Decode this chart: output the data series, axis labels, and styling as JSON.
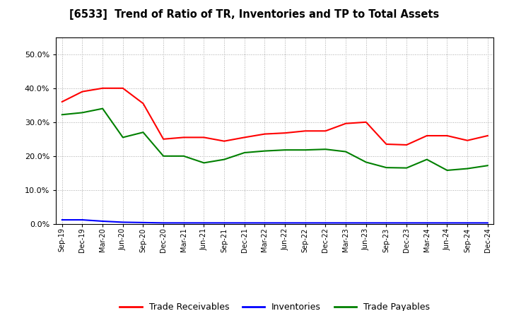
{
  "title": "[6533]  Trend of Ratio of TR, Inventories and TP to Total Assets",
  "x_labels": [
    "Sep-19",
    "Dec-19",
    "Mar-20",
    "Jun-20",
    "Sep-20",
    "Dec-20",
    "Mar-21",
    "Jun-21",
    "Sep-21",
    "Dec-21",
    "Mar-22",
    "Jun-22",
    "Sep-22",
    "Dec-22",
    "Mar-23",
    "Jun-23",
    "Sep-23",
    "Dec-23",
    "Mar-24",
    "Jun-24",
    "Sep-24",
    "Dec-24"
  ],
  "trade_receivables": [
    0.36,
    0.39,
    0.4,
    0.4,
    0.355,
    0.25,
    0.255,
    0.255,
    0.244,
    0.255,
    0.265,
    0.268,
    0.274,
    0.274,
    0.296,
    0.3,
    0.235,
    0.233,
    0.26,
    0.26,
    0.246,
    0.26
  ],
  "inventories": [
    0.012,
    0.012,
    0.008,
    0.005,
    0.004,
    0.003,
    0.003,
    0.003,
    0.003,
    0.003,
    0.003,
    0.003,
    0.003,
    0.003,
    0.003,
    0.003,
    0.003,
    0.003,
    0.003,
    0.003,
    0.003,
    0.003
  ],
  "trade_payables": [
    0.322,
    0.328,
    0.34,
    0.255,
    0.27,
    0.2,
    0.2,
    0.18,
    0.19,
    0.21,
    0.215,
    0.218,
    0.218,
    0.22,
    0.213,
    0.182,
    0.166,
    0.165,
    0.19,
    0.158,
    0.163,
    0.172
  ],
  "tr_color": "#FF0000",
  "inv_color": "#0000FF",
  "tp_color": "#008000",
  "background_color": "#FFFFFF",
  "ylim": [
    0.0,
    0.55
  ],
  "yticks": [
    0.0,
    0.1,
    0.2,
    0.3,
    0.4,
    0.5
  ],
  "legend_labels": [
    "Trade Receivables",
    "Inventories",
    "Trade Payables"
  ]
}
